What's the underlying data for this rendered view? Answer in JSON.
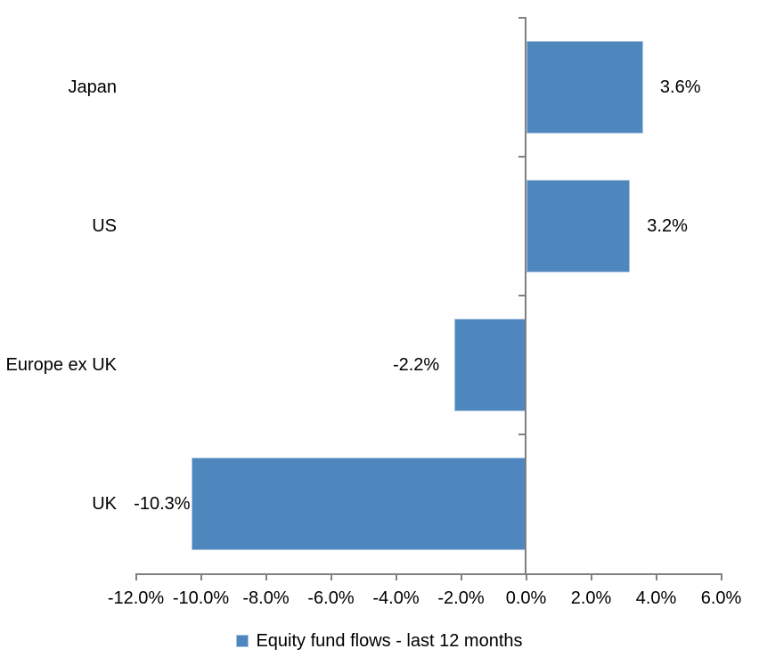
{
  "chart_data": {
    "type": "bar",
    "orientation": "horizontal",
    "title": "",
    "categories": [
      "Japan",
      "US",
      "Europe ex UK",
      "UK"
    ],
    "values": [
      3.6,
      3.2,
      -2.2,
      -10.3
    ],
    "data_labels": [
      "3.6%",
      "3.2%",
      "-2.2%",
      "-10.3%"
    ],
    "series_name": "Equity fund flows - last 12 months",
    "x_tick_labels": [
      "-12.0%",
      "-10.0%",
      "-8.0%",
      "-6.0%",
      "-4.0%",
      "-2.0%",
      "0.0%",
      "2.0%",
      "4.0%",
      "6.0%"
    ],
    "x_tick_values": [
      -12,
      -10,
      -8,
      -6,
      -4,
      -2,
      0,
      2,
      4,
      6
    ],
    "xlim": [
      -12,
      6
    ],
    "grid": "off",
    "legend_position": "bottom-center",
    "bar_color": "#4E86BE",
    "bar_border_color": "#A9C4E1",
    "axis_color": "#808080",
    "text_color": "#000000",
    "background_color": "#FFFFFF"
  },
  "legend": {
    "label": "Equity fund flows - last 12 months"
  }
}
